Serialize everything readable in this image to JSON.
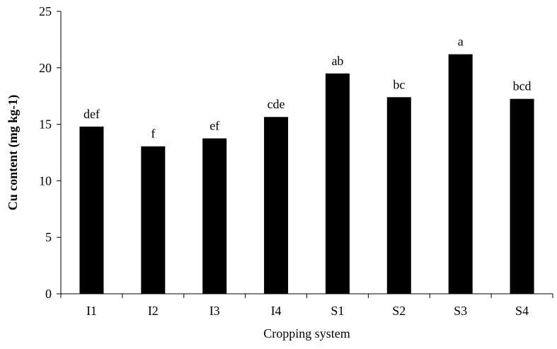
{
  "chart_data": {
    "type": "bar",
    "title": "",
    "xlabel": "Cropping system",
    "ylabel": "Cu content (mg kg-1)",
    "ylim": [
      0,
      25
    ],
    "yticks": [
      0,
      5,
      10,
      15,
      20,
      25
    ],
    "grid": false,
    "categories": [
      "I1",
      "I2",
      "I3",
      "I4",
      "S1",
      "S2",
      "S3",
      "S4"
    ],
    "values": [
      14.8,
      13.05,
      13.75,
      15.65,
      19.5,
      17.4,
      21.2,
      17.25
    ],
    "annotations": [
      "def",
      "f",
      "ef",
      "cde",
      "ab",
      "bc",
      "a",
      "bcd"
    ],
    "bar_color": "#000000"
  }
}
